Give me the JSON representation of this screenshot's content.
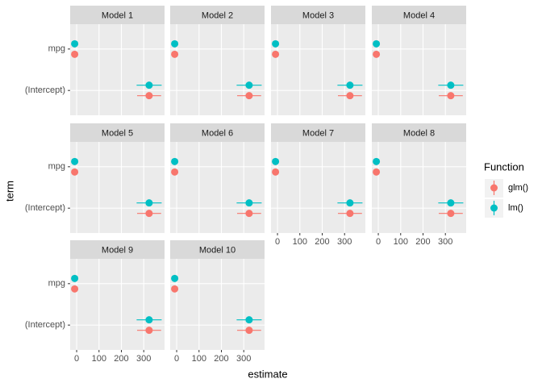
{
  "chart_data": {
    "type": "pointrange",
    "x_label": "estimate",
    "y_label": "term",
    "legend_title": "Function",
    "categories": [
      "mpg",
      "(Intercept)"
    ],
    "panels": [
      "Model 1",
      "Model 2",
      "Model 3",
      "Model 4",
      "Model 5",
      "Model 6",
      "Model 7",
      "Model 8",
      "Model 9",
      "Model 10"
    ],
    "xlim": [
      -29,
      393
    ],
    "xticks": [
      0,
      100,
      200,
      300
    ],
    "grid": true,
    "series": [
      {
        "name": "glm()",
        "color": "#F8766D",
        "values": [
          [
            -8.83,
            324.08
          ],
          [
            -8.83,
            324.08
          ],
          [
            -8.83,
            324.08
          ],
          [
            -8.83,
            324.08
          ],
          [
            -8.83,
            324.08
          ],
          [
            -8.83,
            324.08
          ],
          [
            -8.83,
            324.08
          ],
          [
            -8.83,
            324.08
          ],
          [
            -8.83,
            324.08
          ],
          [
            -8.83,
            324.08
          ]
        ],
        "lower": [
          [
            -11.4,
            270.3
          ],
          [
            -11.4,
            270.3
          ],
          [
            -11.4,
            270.3
          ],
          [
            -11.4,
            270.3
          ],
          [
            -11.4,
            270.3
          ],
          [
            -11.4,
            270.3
          ],
          [
            -11.4,
            270.3
          ],
          [
            -11.4,
            270.3
          ],
          [
            -11.4,
            270.3
          ],
          [
            -11.4,
            270.3
          ]
        ],
        "upper": [
          [
            -6.3,
            377.8
          ],
          [
            -6.3,
            377.8
          ],
          [
            -6.3,
            377.8
          ],
          [
            -6.3,
            377.8
          ],
          [
            -6.3,
            377.8
          ],
          [
            -6.3,
            377.8
          ],
          [
            -6.3,
            377.8
          ],
          [
            -6.3,
            377.8
          ],
          [
            -6.3,
            377.8
          ],
          [
            -6.3,
            377.8
          ]
        ]
      },
      {
        "name": "lm()",
        "color": "#00BFC4",
        "values": [
          [
            -8.83,
            324.08
          ],
          [
            -8.83,
            324.08
          ],
          [
            -8.83,
            324.08
          ],
          [
            -8.83,
            324.08
          ],
          [
            -8.83,
            324.08
          ],
          [
            -8.83,
            324.08
          ],
          [
            -8.83,
            324.08
          ],
          [
            -8.83,
            324.08
          ],
          [
            -8.83,
            324.08
          ],
          [
            -8.83,
            324.08
          ]
        ],
        "lower": [
          [
            -11.5,
            268.1
          ],
          [
            -11.5,
            268.1
          ],
          [
            -11.5,
            268.1
          ],
          [
            -11.5,
            268.1
          ],
          [
            -11.5,
            268.1
          ],
          [
            -11.5,
            268.1
          ],
          [
            -11.5,
            268.1
          ],
          [
            -11.5,
            268.1
          ],
          [
            -11.5,
            268.1
          ],
          [
            -11.5,
            268.1
          ]
        ],
        "upper": [
          [
            -6.2,
            380.1
          ],
          [
            -6.2,
            380.1
          ],
          [
            -6.2,
            380.1
          ],
          [
            -6.2,
            380.1
          ],
          [
            -6.2,
            380.1
          ],
          [
            -6.2,
            380.1
          ],
          [
            -6.2,
            380.1
          ],
          [
            -6.2,
            380.1
          ],
          [
            -6.2,
            380.1
          ],
          [
            -6.2,
            380.1
          ]
        ]
      }
    ]
  }
}
